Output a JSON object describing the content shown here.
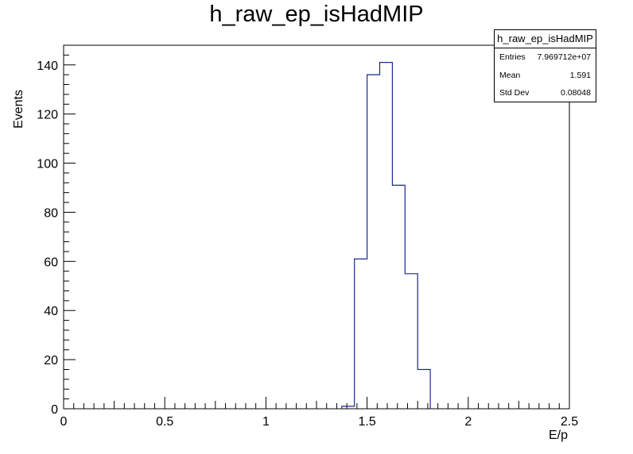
{
  "chart_data": {
    "type": "bar",
    "title": "h_raw_ep_isHadMIP",
    "xlabel": "E/p",
    "ylabel": "Events",
    "xlim": [
      0,
      2.5
    ],
    "ylim": [
      0,
      148
    ],
    "x_ticks": [
      "0",
      "0.5",
      "1",
      "1.5",
      "2",
      "2.5"
    ],
    "y_ticks": [
      "0",
      "20",
      "40",
      "60",
      "80",
      "100",
      "120",
      "140"
    ],
    "bin_width": 0.0625,
    "bins": [
      {
        "x0": 1.375,
        "x1": 1.4375,
        "value": 1
      },
      {
        "x0": 1.4375,
        "x1": 1.5,
        "value": 61
      },
      {
        "x0": 1.5,
        "x1": 1.5625,
        "value": 136
      },
      {
        "x0": 1.5625,
        "x1": 1.625,
        "value": 141
      },
      {
        "x0": 1.625,
        "x1": 1.6875,
        "value": 91
      },
      {
        "x0": 1.6875,
        "x1": 1.75,
        "value": 55
      },
      {
        "x0": 1.75,
        "x1": 1.8125,
        "value": 16
      }
    ],
    "line_color": "#1a2a8c"
  },
  "stats": {
    "title": "h_raw_ep_isHadMIP",
    "rows": [
      {
        "label": "Entries",
        "value": "7.969712e+07"
      },
      {
        "label": "Mean",
        "value": "1.591"
      },
      {
        "label": "Std Dev",
        "value": "0.08048"
      }
    ]
  }
}
